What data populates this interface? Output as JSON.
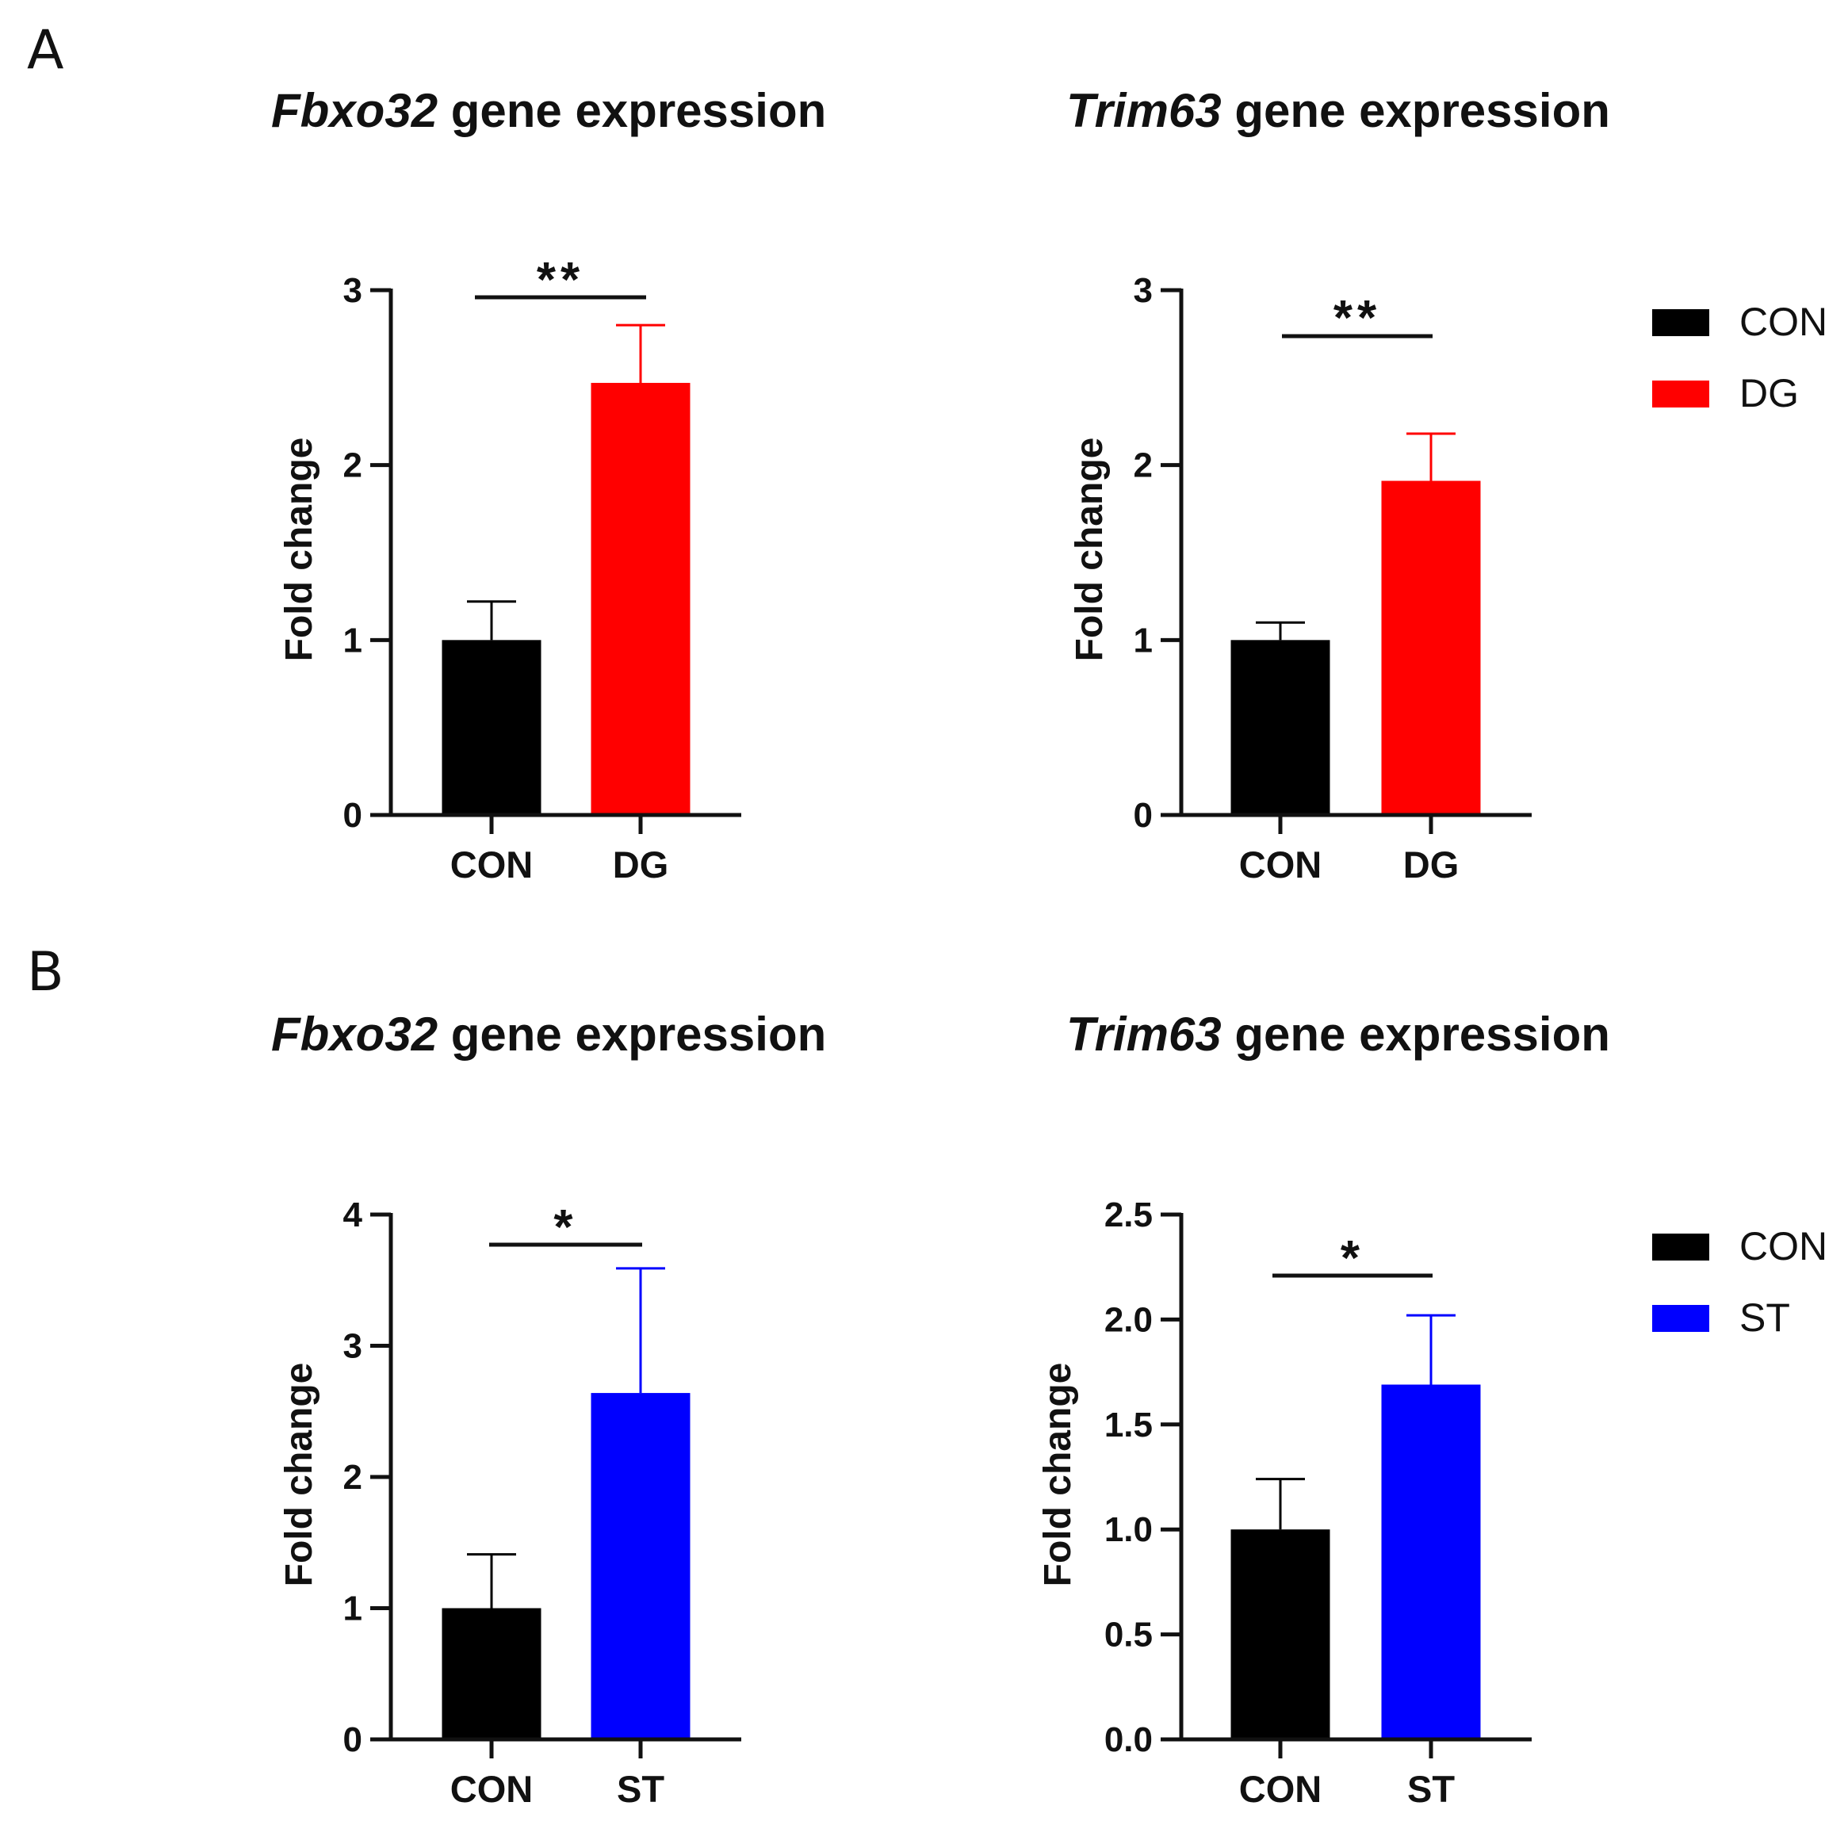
{
  "panels": [
    {
      "letter": "A"
    },
    {
      "letter": "B"
    }
  ],
  "legends": [
    {
      "entries": [
        {
          "label": "CON",
          "color": "#000000"
        },
        {
          "label": "DG",
          "color": "#ff0000"
        }
      ]
    },
    {
      "entries": [
        {
          "label": "CON",
          "color": "#000000"
        },
        {
          "label": "ST",
          "color": "#0000ff"
        }
      ]
    }
  ],
  "chart_data": [
    {
      "type": "bar",
      "title_gene": "Fbxo32",
      "title_rest": " gene expression",
      "ylabel": "Fold change",
      "ylim": [
        0,
        3
      ],
      "yticks": [
        "0",
        "1",
        "2",
        "3"
      ],
      "categories": [
        "CON",
        "DG"
      ],
      "values": [
        1.0,
        2.47
      ],
      "errors": [
        0.22,
        0.33
      ],
      "colors": [
        "#000000",
        "#ff0000"
      ],
      "significance": "**"
    },
    {
      "type": "bar",
      "title_gene": "Trim63",
      "title_rest": " gene expression",
      "ylabel": "Fold change",
      "ylim": [
        0,
        3
      ],
      "yticks": [
        "0",
        "1",
        "2",
        "3"
      ],
      "categories": [
        "CON",
        "DG"
      ],
      "values": [
        1.0,
        1.91
      ],
      "errors": [
        0.1,
        0.27
      ],
      "colors": [
        "#000000",
        "#ff0000"
      ],
      "significance": "**"
    },
    {
      "type": "bar",
      "title_gene": "Fbxo32",
      "title_rest": " gene expression",
      "ylabel": "Fold change",
      "ylim": [
        0,
        4
      ],
      "yticks": [
        "0",
        "1",
        "2",
        "3",
        "4"
      ],
      "categories": [
        "CON",
        "ST"
      ],
      "values": [
        1.0,
        2.64
      ],
      "errors": [
        0.41,
        0.95
      ],
      "colors": [
        "#000000",
        "#0000ff"
      ],
      "significance": "*"
    },
    {
      "type": "bar",
      "title_gene": "Trim63",
      "title_rest": " gene expression",
      "ylabel": "Fold change",
      "ylim": [
        0,
        2.5
      ],
      "yticks": [
        "0.0",
        "0.5",
        "1.0",
        "1.5",
        "2.0",
        "2.5"
      ],
      "categories": [
        "CON",
        "ST"
      ],
      "values": [
        1.0,
        1.69
      ],
      "errors": [
        0.24,
        0.33
      ],
      "colors": [
        "#000000",
        "#0000ff"
      ],
      "significance": "*"
    }
  ]
}
